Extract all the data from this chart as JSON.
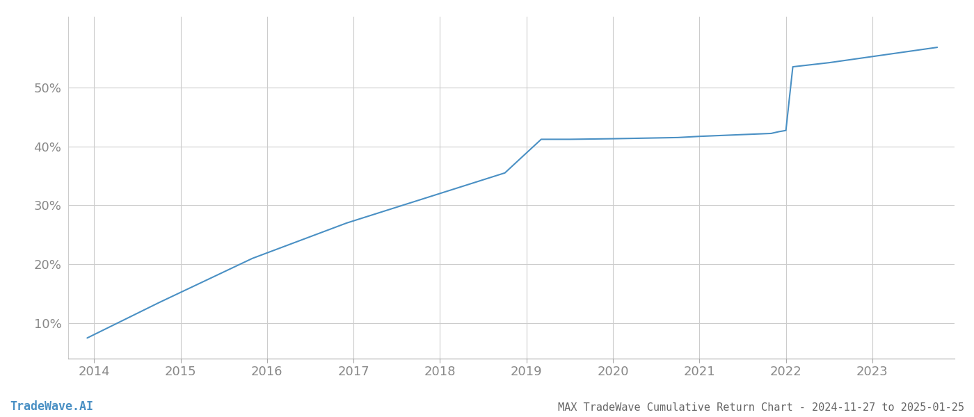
{
  "title": "MAX TradeWave Cumulative Return Chart - 2024-11-27 to 2025-01-25",
  "watermark": "TradeWave.AI",
  "line_color": "#4a90c4",
  "background_color": "#ffffff",
  "grid_color": "#cccccc",
  "x_years": [
    2014,
    2015,
    2016,
    2017,
    2018,
    2019,
    2020,
    2021,
    2022,
    2023
  ],
  "data_points": [
    [
      2013.92,
      7.5
    ],
    [
      2014.75,
      13.5
    ],
    [
      2015.83,
      21.0
    ],
    [
      2016.92,
      27.0
    ],
    [
      2018.75,
      35.5
    ],
    [
      2019.17,
      41.2
    ],
    [
      2019.5,
      41.2
    ],
    [
      2020.0,
      41.3
    ],
    [
      2020.75,
      41.5
    ],
    [
      2021.0,
      41.7
    ],
    [
      2021.83,
      42.2
    ],
    [
      2021.92,
      42.5
    ],
    [
      2022.0,
      42.7
    ],
    [
      2022.08,
      53.5
    ],
    [
      2022.5,
      54.2
    ],
    [
      2023.75,
      56.8
    ]
  ],
  "yticks": [
    10,
    20,
    30,
    40,
    50
  ],
  "ylim": [
    4,
    62
  ],
  "xlim": [
    2013.7,
    2023.95
  ],
  "tick_color": "#888888",
  "title_color": "#666666",
  "watermark_color": "#4a90c4",
  "title_fontsize": 11,
  "watermark_fontsize": 12,
  "tick_fontsize": 13,
  "line_width": 1.5
}
